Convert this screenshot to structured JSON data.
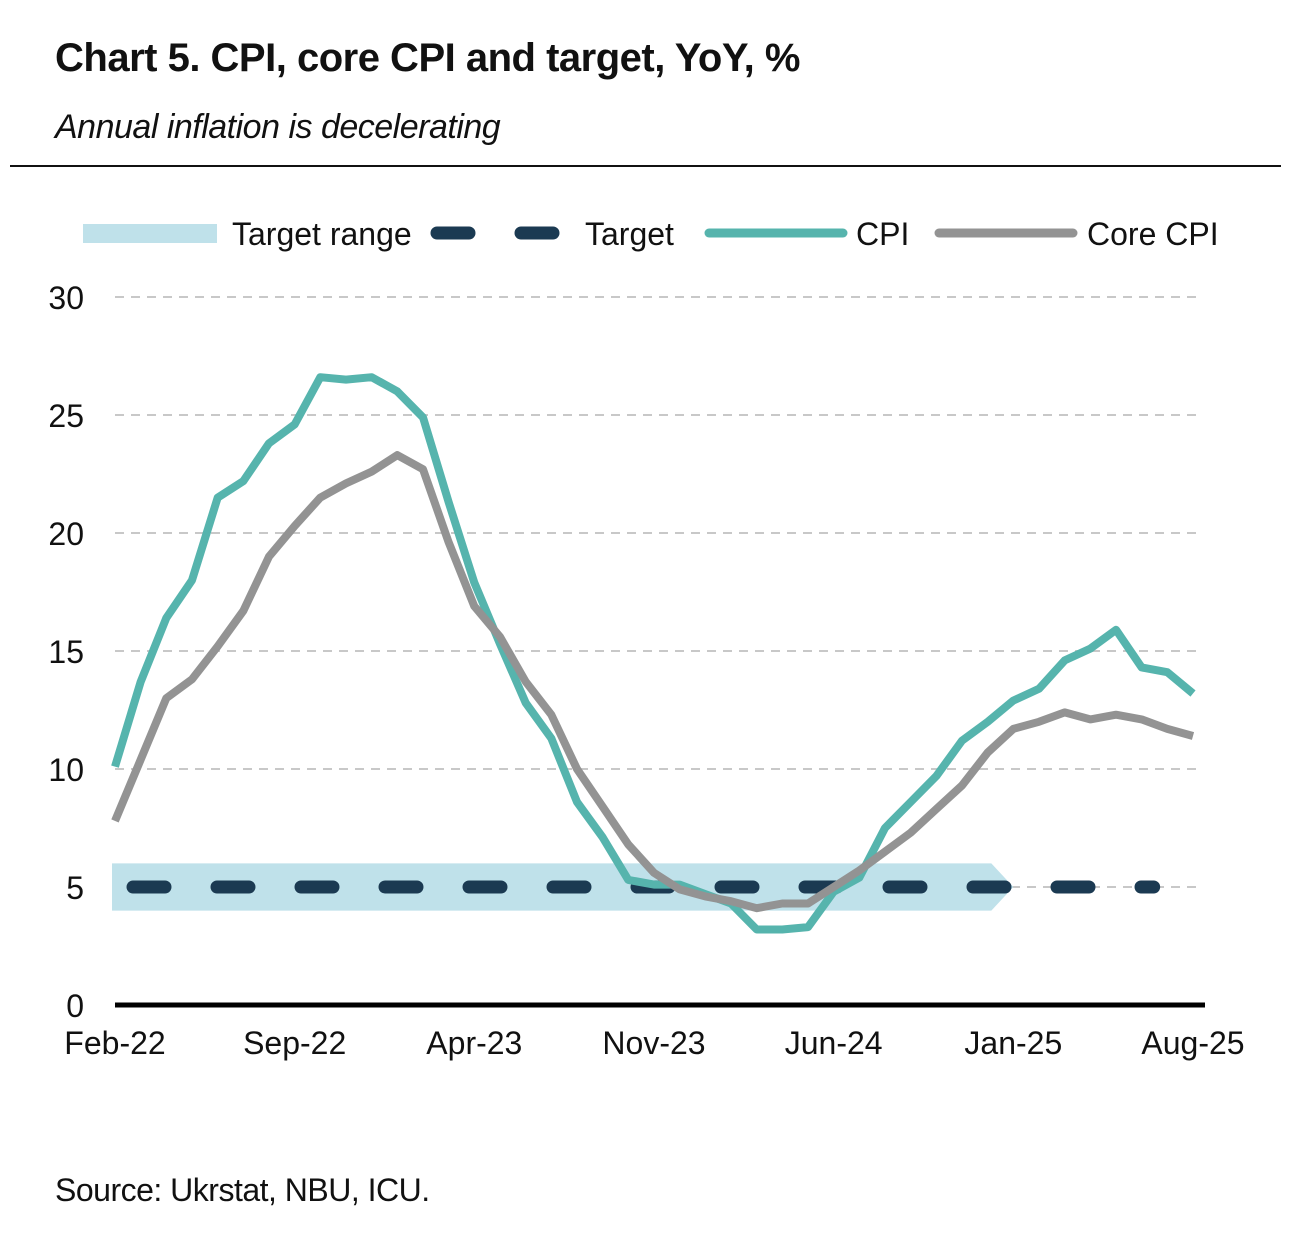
{
  "header": {
    "title": "Chart 5. CPI, core CPI and target, YoY, %",
    "subtitle": "Annual inflation is decelerating"
  },
  "footer": {
    "source": "Source: Ukrstat, NBU, ICU."
  },
  "colors": {
    "cpi": "#56b4ad",
    "core_cpi": "#939393",
    "target": "#1b3a52",
    "target_range": "#bfe1ea",
    "grid": "#c8c8c8",
    "axis": "#000000"
  },
  "chart_data": {
    "type": "line",
    "title": "Chart 5. CPI, core CPI and target, YoY, %",
    "xlabel": "",
    "ylabel": "",
    "ylim": [
      0,
      30
    ],
    "yticks": [
      "0",
      "5",
      "10",
      "15",
      "20",
      "25",
      "30"
    ],
    "xticks": [
      "Feb-22",
      "Sep-22",
      "Apr-23",
      "Nov-23",
      "Jun-24",
      "Jan-25",
      "Aug-25"
    ],
    "grid": true,
    "legend_position": "top",
    "legend": [
      "Target range",
      "Target",
      "CPI",
      "Core CPI"
    ],
    "x": [
      "Feb-22",
      "Mar-22",
      "Apr-22",
      "May-22",
      "Jun-22",
      "Jul-22",
      "Aug-22",
      "Sep-22",
      "Oct-22",
      "Nov-22",
      "Dec-22",
      "Jan-23",
      "Feb-23",
      "Mar-23",
      "Apr-23",
      "May-23",
      "Jun-23",
      "Jul-23",
      "Aug-23",
      "Sep-23",
      "Oct-23",
      "Nov-23",
      "Dec-23",
      "Jan-24",
      "Feb-24",
      "Mar-24",
      "Apr-24",
      "May-24",
      "Jun-24",
      "Jul-24",
      "Aug-24",
      "Sep-24",
      "Oct-24",
      "Nov-24",
      "Dec-24",
      "Jan-25",
      "Feb-25",
      "Mar-25",
      "Apr-25",
      "May-25",
      "Jun-25",
      "Jul-25",
      "Aug-25"
    ],
    "series": [
      {
        "name": "CPI",
        "values": [
          10.1,
          13.7,
          16.4,
          18.0,
          21.5,
          22.2,
          23.8,
          24.6,
          26.6,
          26.5,
          26.6,
          26.0,
          24.9,
          21.3,
          17.9,
          15.3,
          12.8,
          11.3,
          8.6,
          7.1,
          5.3,
          5.1,
          5.1,
          4.7,
          4.3,
          3.2,
          3.2,
          3.3,
          4.8,
          5.4,
          7.5,
          8.6,
          9.7,
          11.2,
          12.0,
          12.9,
          13.4,
          14.6,
          15.1,
          15.9,
          14.3,
          14.1,
          13.2
        ]
      },
      {
        "name": "Core CPI",
        "values": [
          7.8,
          10.4,
          13.0,
          13.8,
          15.2,
          16.7,
          19.0,
          20.3,
          21.5,
          22.1,
          22.6,
          23.3,
          22.7,
          19.6,
          16.9,
          15.6,
          13.7,
          12.3,
          10.0,
          8.4,
          6.8,
          5.6,
          4.9,
          4.6,
          4.4,
          4.1,
          4.3,
          4.3,
          5.0,
          5.7,
          6.5,
          7.3,
          8.3,
          9.3,
          10.7,
          11.7,
          12.0,
          12.4,
          12.1,
          12.3,
          12.1,
          11.7,
          11.4
        ]
      },
      {
        "name": "Target",
        "values": [
          5,
          5,
          5,
          5,
          5,
          5,
          5,
          5,
          5,
          5,
          5,
          5,
          5,
          5,
          5,
          5,
          5,
          5,
          5,
          5,
          5,
          5,
          5,
          5,
          5,
          5,
          5,
          5,
          5,
          5,
          5,
          5,
          5,
          5,
          5,
          5,
          5,
          5,
          5,
          5,
          5,
          5,
          5
        ]
      }
    ],
    "target_range": {
      "name": "Target range",
      "low": 4,
      "high": 6,
      "from": "Feb-22",
      "to": "Jan-25"
    }
  }
}
